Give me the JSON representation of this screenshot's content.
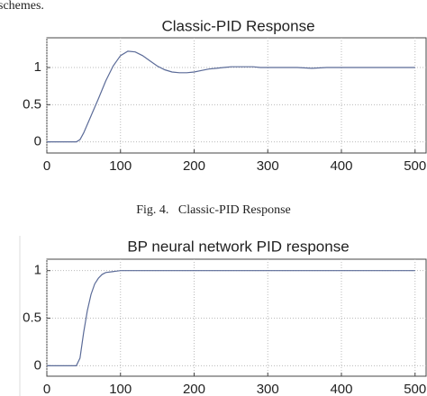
{
  "text_top": "schemes.",
  "caption": "Fig. 4.   Classic-PID Response",
  "chart_data": [
    {
      "type": "line",
      "title": "Classic-PID Response",
      "x": [
        0,
        20,
        40,
        45,
        50,
        60,
        70,
        80,
        90,
        100,
        110,
        120,
        130,
        140,
        150,
        160,
        170,
        180,
        190,
        200,
        210,
        220,
        230,
        240,
        250,
        260,
        270,
        280,
        290,
        300,
        320,
        340,
        360,
        380,
        400,
        420,
        440,
        460,
        480,
        500
      ],
      "series": [
        {
          "color": "#5b6b98",
          "values": [
            0,
            0,
            0,
            0.03,
            0.12,
            0.35,
            0.58,
            0.82,
            1.02,
            1.16,
            1.22,
            1.21,
            1.16,
            1.09,
            1.02,
            0.97,
            0.94,
            0.93,
            0.93,
            0.94,
            0.96,
            0.98,
            0.99,
            1.0,
            1.01,
            1.01,
            1.01,
            1.01,
            1.0,
            1.0,
            1.0,
            1.0,
            0.99,
            1.0,
            1.0,
            1.0,
            1.0,
            1.0,
            1.0,
            1.0
          ]
        }
      ],
      "xlim": [
        0,
        515
      ],
      "xticks": [
        0,
        100,
        200,
        300,
        400,
        500
      ],
      "ylim": [
        -0.15,
        1.4
      ],
      "yticks": [
        0,
        0.5,
        1
      ],
      "grid": true
    },
    {
      "type": "line",
      "title": "BP neural network PID response",
      "x": [
        0,
        40,
        45,
        50,
        55,
        60,
        65,
        70,
        75,
        80,
        90,
        100,
        120,
        150,
        200,
        300,
        400,
        500
      ],
      "series": [
        {
          "color": "#5b6b98",
          "values": [
            0,
            0,
            0.08,
            0.35,
            0.58,
            0.75,
            0.86,
            0.92,
            0.96,
            0.98,
            0.99,
            1,
            1,
            1,
            1,
            1,
            1,
            1
          ]
        }
      ],
      "xlim": [
        0,
        515
      ],
      "xticks": [
        0,
        100,
        200,
        300,
        400,
        500
      ],
      "ylim": [
        -0.11,
        1.12
      ],
      "yticks": [
        0,
        0.5,
        1
      ],
      "grid": true
    }
  ]
}
